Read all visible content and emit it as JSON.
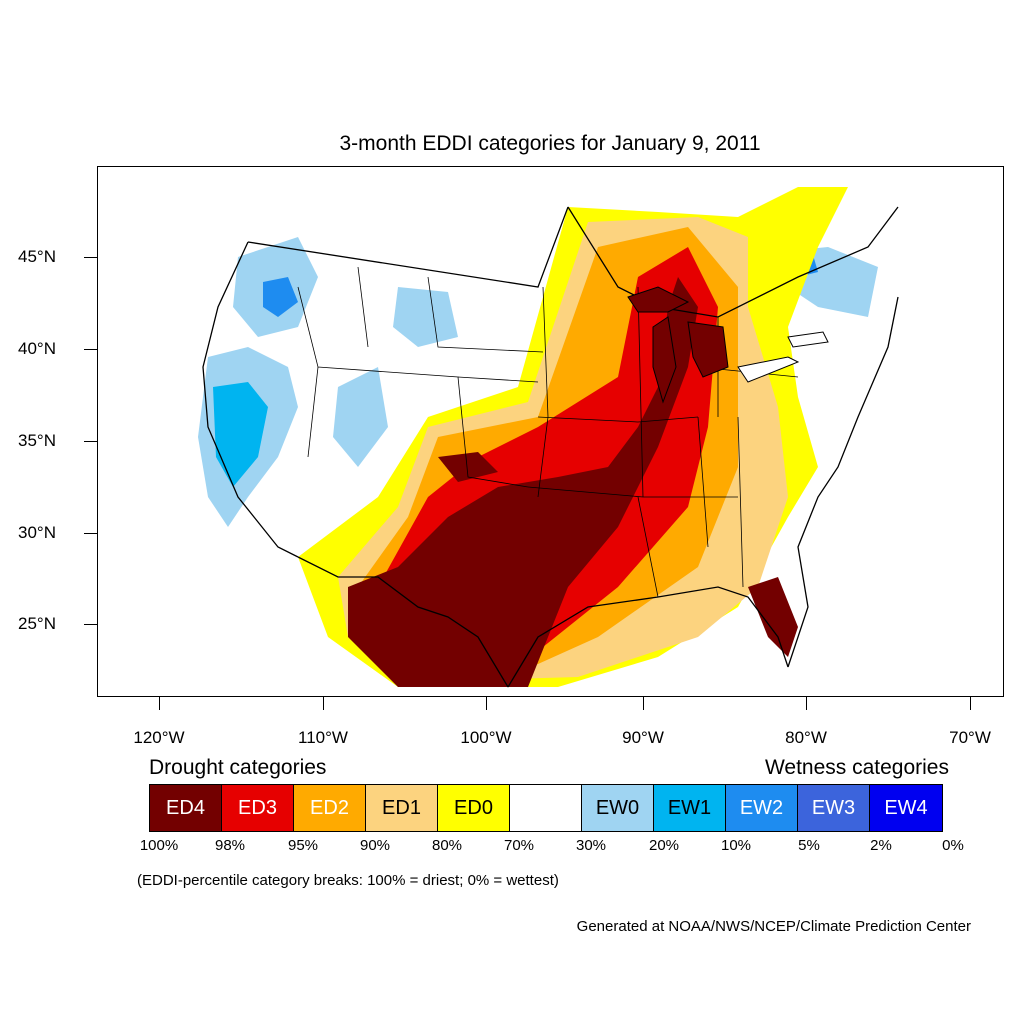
{
  "title": "3-month EDDI categories for January 9, 2011",
  "lat_labels": [
    "45°N",
    "40°N",
    "35°N",
    "30°N",
    "25°N"
  ],
  "lon_labels": [
    "120°W",
    "110°W",
    "100°W",
    "90°W",
    "80°W",
    "70°W"
  ],
  "legend": {
    "drought_label": "Drought categories",
    "wetness_label": "Wetness categories",
    "categories": [
      {
        "label": "ED4",
        "color": "#730000",
        "text_color": "#ffffff"
      },
      {
        "label": "ED3",
        "color": "#e60000",
        "text_color": "#ffffff"
      },
      {
        "label": "ED2",
        "color": "#ffaa00",
        "text_color": "#ffffff"
      },
      {
        "label": "ED1",
        "color": "#fcd37f",
        "text_color": "#000000"
      },
      {
        "label": "ED0",
        "color": "#ffff00",
        "text_color": "#000000"
      },
      {
        "label": "",
        "color": "#ffffff",
        "text_color": "#000000"
      },
      {
        "label": "EW0",
        "color": "#9fd4f2",
        "text_color": "#000000"
      },
      {
        "label": "EW1",
        "color": "#00b4f0",
        "text_color": "#000000"
      },
      {
        "label": "EW2",
        "color": "#1e8cf0",
        "text_color": "#ffffff"
      },
      {
        "label": "EW3",
        "color": "#3c64dc",
        "text_color": "#ffffff"
      },
      {
        "label": "EW4",
        "color": "#0000f0",
        "text_color": "#ffffff"
      }
    ],
    "percentiles": [
      "100%",
      "98%",
      "95%",
      "90%",
      "80%",
      "70%",
      "30%",
      "20%",
      "10%",
      "5%",
      "2%",
      "0%"
    ]
  },
  "note": "(EDDI-percentile category breaks: 100% = driest; 0% = wettest)",
  "credit": "Generated at NOAA/NWS/NCEP/Climate Prediction Center"
}
